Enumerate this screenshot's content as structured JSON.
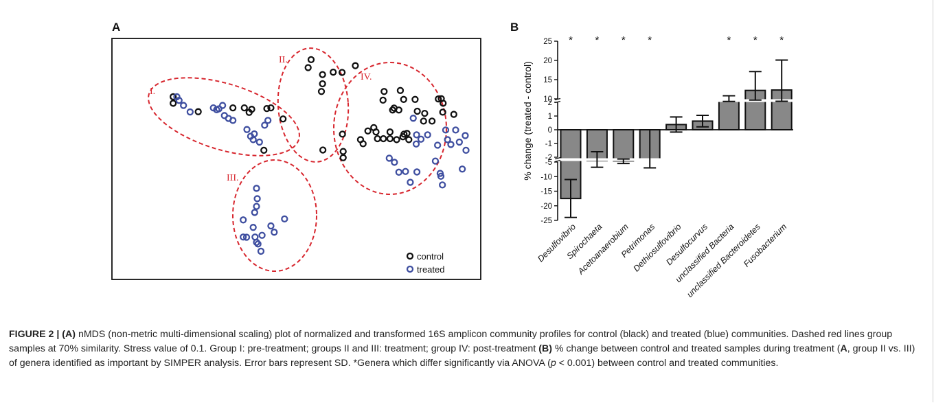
{
  "chart_data": [
    {
      "panel_label": "A",
      "type": "scatter",
      "xlim": [
        0,
        1000
      ],
      "ylim": [
        0,
        1000
      ],
      "grid": false,
      "legend_position": "bottom-right",
      "series": [
        {
          "name": "control",
          "color": "#111111",
          "points": [
            [
              166,
              758
            ],
            [
              166,
              731
            ],
            [
              234,
              696
            ],
            [
              328,
              712
            ],
            [
              359,
              712
            ],
            [
              379,
              706
            ],
            [
              372,
              693
            ],
            [
              420,
              709
            ],
            [
              431,
              712
            ],
            [
              464,
              666
            ],
            [
              532,
              879
            ],
            [
              540,
              912
            ],
            [
              571,
              850
            ],
            [
              600,
              860
            ],
            [
              624,
              859
            ],
            [
              660,
              887
            ],
            [
              571,
              812
            ],
            [
              568,
              780
            ],
            [
              625,
              603
            ],
            [
              412,
              536
            ],
            [
              572,
              537
            ],
            [
              627,
              531
            ],
            [
              627,
              505
            ],
            [
              735,
              744
            ],
            [
              738,
              780
            ],
            [
              782,
              784
            ],
            [
              791,
              747
            ],
            [
              822,
              747
            ],
            [
              885,
              749
            ],
            [
              893,
              750
            ],
            [
              898,
              731
            ],
            [
              897,
              694
            ],
            [
              765,
              711
            ],
            [
              761,
              703
            ],
            [
              778,
              703
            ],
            [
              828,
              698
            ],
            [
              848,
              689
            ],
            [
              868,
              657
            ],
            [
              845,
              657
            ],
            [
              927,
              685
            ],
            [
              754,
              612
            ],
            [
              792,
              603
            ],
            [
              716,
              612
            ],
            [
              720,
              584
            ],
            [
              736,
              584
            ],
            [
              754,
              584
            ],
            [
              772,
              580
            ],
            [
              789,
              592
            ],
            [
              800,
              606
            ],
            [
              805,
              580
            ],
            [
              710,
              630
            ],
            [
              694,
              616
            ],
            [
              674,
              580
            ],
            [
              681,
              563
            ]
          ]
        },
        {
          "name": "treated",
          "color": "#3f4fa0",
          "points": [
            [
              176,
              758
            ],
            [
              182,
              743
            ],
            [
              194,
              722
            ],
            [
              212,
              695
            ],
            [
              275,
              712
            ],
            [
              284,
              704
            ],
            [
              290,
              708
            ],
            [
              300,
              722
            ],
            [
              305,
              680
            ],
            [
              316,
              668
            ],
            [
              328,
              660
            ],
            [
              366,
              622
            ],
            [
              376,
              594
            ],
            [
              386,
              604
            ],
            [
              383,
              580
            ],
            [
              400,
              570
            ],
            [
              423,
              660
            ],
            [
              414,
              640
            ],
            [
              392,
              378
            ],
            [
              394,
              335
            ],
            [
              392,
              303
            ],
            [
              387,
              278
            ],
            [
              383,
              216
            ],
            [
              388,
              176
            ],
            [
              392,
              154
            ],
            [
              396,
              147
            ],
            [
              404,
              117
            ],
            [
              407,
              183
            ],
            [
              431,
              222
            ],
            [
              440,
              196
            ],
            [
              468,
              251
            ],
            [
              356,
              247
            ],
            [
              356,
              176
            ],
            [
              365,
              175
            ],
            [
              817,
              669
            ],
            [
              825,
              562
            ],
            [
              826,
              600
            ],
            [
              838,
              582
            ],
            [
              856,
              600
            ],
            [
              883,
              557
            ],
            [
              905,
              620
            ],
            [
              910,
              580
            ],
            [
              919,
              560
            ],
            [
              932,
              620
            ],
            [
              958,
              597
            ],
            [
              942,
              570
            ],
            [
              960,
              536
            ],
            [
              752,
              503
            ],
            [
              778,
              445
            ],
            [
              766,
              486
            ],
            [
              796,
              448
            ],
            [
              809,
              403
            ],
            [
              827,
              446
            ],
            [
              877,
              491
            ],
            [
              892,
              428
            ],
            [
              950,
              458
            ],
            [
              896,
              392
            ],
            [
              890,
              440
            ]
          ]
        }
      ],
      "group_labels": [
        "I.",
        "II.",
        "III.",
        "IV."
      ],
      "legend": [
        "control",
        "treated"
      ]
    },
    {
      "panel_label": "B",
      "type": "bar",
      "ylabel": "% change (treated - control)",
      "categories": [
        "Desulfovibrio",
        "Spirochaeta",
        "Acetoanaerobium",
        "Petrimonas",
        "Dethiosulfovibrio",
        "Desulfocurvus",
        "unclassified Bacteria",
        "unclassified Bacteroidetes",
        "Fusobacterium"
      ],
      "values": [
        -17.5,
        -4.2,
        -4.3,
        -3.5,
        0.38,
        0.63,
        7.4,
        12.2,
        12.3
      ],
      "sd": [
        6.5,
        2.6,
        1.2,
        3.5,
        0.55,
        0.42,
        3.4,
        4.9,
        7.8
      ],
      "significant": [
        true,
        true,
        true,
        true,
        false,
        false,
        true,
        true,
        true
      ],
      "significance_marker": "*",
      "axis_segments": [
        {
          "range": [
            10,
            25
          ],
          "ticks": [
            10,
            15,
            20,
            25
          ]
        },
        {
          "range": [
            -2,
            2
          ],
          "ticks": [
            -2,
            -1,
            0,
            1,
            2
          ]
        },
        {
          "range": [
            -25,
            -5
          ],
          "ticks": [
            -25,
            -20,
            -15,
            -10,
            -5
          ]
        }
      ],
      "bar_color": "#888888"
    }
  ],
  "caption": {
    "label": "FIGURE 2 |",
    "part_a_label": "(A)",
    "part_a_text": "nMDS (non-metric multi-dimensional scaling) plot of normalized and transformed 16S amplicon community profiles for control (black) and treated (blue) communities. Dashed red lines group samples at 70% similarity. Stress value of 0.1. Group I: pre-treatment; groups II and III: treatment; group IV: post-treatment",
    "part_b_label": "(B)",
    "part_b_text1": "% change between control and treated samples during treatment (",
    "part_b_bold": "A",
    "part_b_text2": ", group II vs. III) of genera identified as important by SIMPER analysis. Error bars represent SD. *Genera which differ significantly via ANOVA (",
    "part_b_p": "p",
    "part_b_text3": " < 0.001) between control and treated communities."
  }
}
